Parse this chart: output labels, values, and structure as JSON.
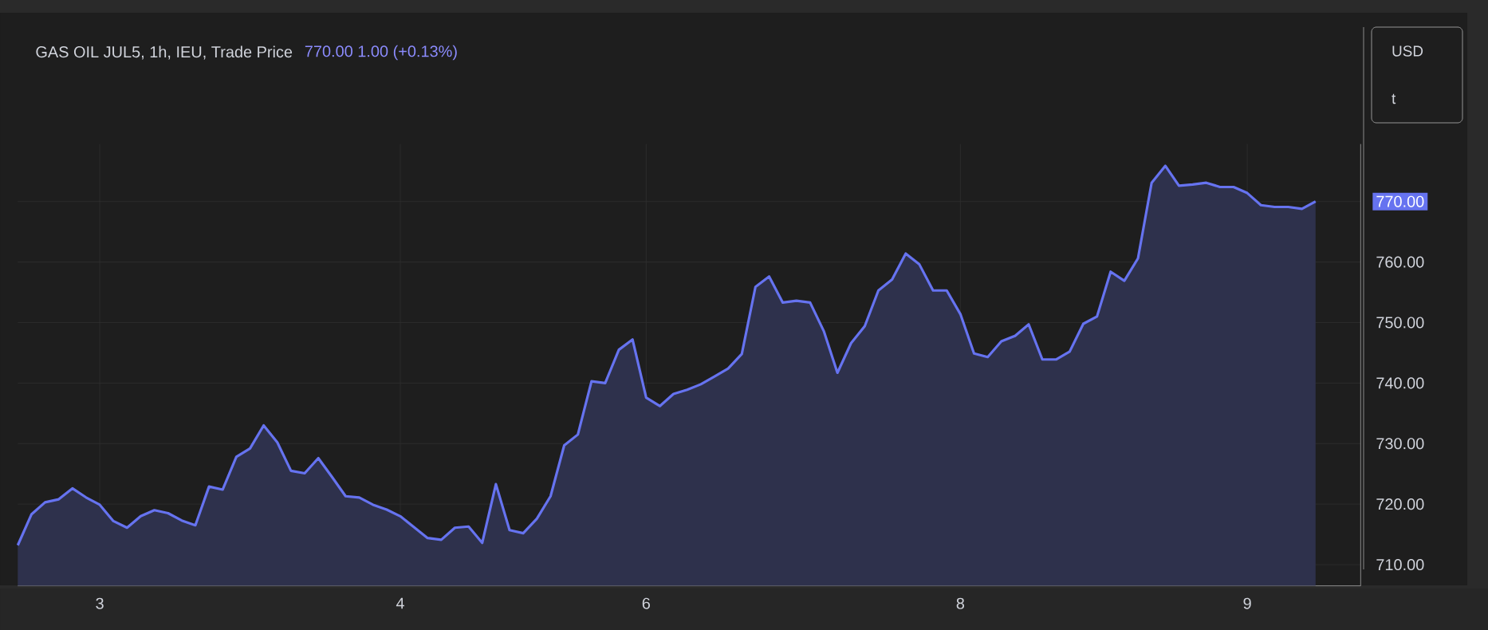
{
  "chart_data": {
    "type": "area",
    "title": "GAS OIL JUL5, 1h, IEU, Trade Price",
    "subtitle": "770.00  1.00 (+0.13%)",
    "annotations": [
      "USD",
      "t"
    ],
    "categories": [
      null,
      null,
      null,
      null,
      null,
      null,
      "3",
      null,
      null,
      null,
      null,
      null,
      null,
      null,
      null,
      null,
      null,
      null,
      null,
      null,
      null,
      null,
      null,
      null,
      null,
      null,
      null,
      null,
      "4",
      null,
      null,
      null,
      null,
      null,
      null,
      null,
      null,
      null,
      null,
      null,
      null,
      null,
      null,
      null,
      null,
      null,
      "6",
      null,
      null,
      null,
      null,
      null,
      null,
      null,
      null,
      null,
      null,
      null,
      null,
      null,
      null,
      null,
      null,
      null,
      null,
      null,
      null,
      null,
      null,
      "8",
      null,
      null,
      null,
      null,
      null,
      null,
      null,
      null,
      null,
      null,
      null,
      null,
      null,
      null,
      null,
      null,
      null,
      null,
      null,
      null,
      "9",
      null,
      null,
      null,
      null,
      null
    ],
    "series": [
      {
        "color": "#6673f0",
        "values": [
          713.2,
          718.3,
          720.3,
          720.8,
          722.6,
          721.1,
          719.9,
          717.2,
          716.1,
          718.0,
          719.0,
          718.5,
          717.3,
          716.5,
          722.9,
          722.4,
          727.8,
          729.2,
          733.0,
          730.2,
          725.5,
          725.1,
          727.6,
          724.5,
          721.3,
          721.1,
          719.9,
          719.1,
          718.0,
          716.2,
          714.4,
          714.1,
          716.1,
          716.3,
          713.6,
          723.3,
          715.7,
          715.2,
          717.6,
          721.3,
          729.7,
          731.5,
          740.3,
          740.0,
          745.5,
          747.2,
          737.6,
          736.2,
          738.2,
          738.9,
          739.8,
          741.1,
          742.4,
          744.8,
          755.9,
          757.6,
          753.3,
          753.6,
          753.3,
          748.6,
          741.7,
          746.6,
          749.4,
          755.3,
          757.1,
          761.4,
          759.6,
          755.3,
          755.3,
          751.4,
          744.9,
          744.3,
          746.9,
          747.8,
          749.7,
          743.9,
          743.9,
          745.2,
          749.8,
          751.0,
          758.4,
          756.9,
          760.6,
          773.1,
          775.9,
          772.6,
          772.8,
          773.1,
          772.4,
          772.4,
          771.4,
          769.4,
          769.1,
          769.1,
          768.8,
          770.0
        ]
      }
    ],
    "ylim": [
      706.5,
      779.5
    ],
    "yticks": [
      {
        "value": 710,
        "label": "710.00"
      },
      {
        "value": 720,
        "label": "720.00"
      },
      {
        "value": 730,
        "label": "730.00"
      },
      {
        "value": 740,
        "label": "740.00"
      },
      {
        "value": 750,
        "label": "750.00"
      },
      {
        "value": 760,
        "label": "760.00"
      },
      {
        "value": 770,
        "label": "770.00"
      }
    ],
    "grid": true
  }
}
